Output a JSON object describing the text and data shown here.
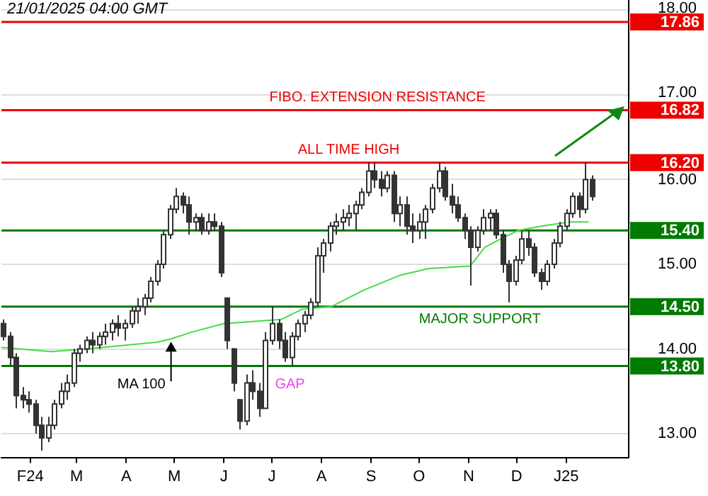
{
  "chart_data": {
    "type": "candlestick",
    "title": "21/01/2025 04:00 GMT",
    "x": [
      "2024-01-15",
      "2024-01-19",
      "2024-01-23",
      "2024-01-27",
      "2024-01-31",
      "2024-02-04",
      "2024-02-08",
      "2024-02-12",
      "2024-02-16",
      "2024-02-20",
      "2024-02-24",
      "2024-02-28",
      "2024-03-03",
      "2024-03-07",
      "2024-03-11",
      "2024-03-15",
      "2024-03-19",
      "2024-03-23",
      "2024-03-27",
      "2024-03-31",
      "2024-04-04",
      "2024-04-08",
      "2024-04-12",
      "2024-04-16",
      "2024-04-20",
      "2024-04-24",
      "2024-04-28",
      "2024-05-02",
      "2024-05-06",
      "2024-05-10",
      "2024-05-14",
      "2024-05-18",
      "2024-05-22",
      "2024-05-26",
      "2024-05-30",
      "2024-06-03",
      "2024-06-07",
      "2024-06-11",
      "2024-06-15",
      "2024-06-19",
      "2024-06-23",
      "2024-06-27",
      "2024-07-01",
      "2024-07-05",
      "2024-07-09",
      "2024-07-13",
      "2024-07-17",
      "2024-07-21",
      "2024-07-25",
      "2024-07-29",
      "2024-08-02",
      "2024-08-06",
      "2024-08-10",
      "2024-08-14",
      "2024-08-18",
      "2024-08-22",
      "2024-08-26",
      "2024-08-30",
      "2024-09-03",
      "2024-09-07",
      "2024-09-11",
      "2024-09-15",
      "2024-09-19",
      "2024-09-23",
      "2024-09-27",
      "2024-10-01",
      "2024-10-05",
      "2024-10-09",
      "2024-10-13",
      "2024-10-17",
      "2024-10-21",
      "2024-10-25",
      "2024-10-29",
      "2024-11-02",
      "2024-11-06",
      "2024-11-10",
      "2024-11-14",
      "2024-11-18",
      "2024-11-22",
      "2024-11-26",
      "2024-11-30",
      "2024-12-04",
      "2024-12-08",
      "2024-12-12",
      "2024-12-16",
      "2024-12-20",
      "2024-12-24",
      "2024-12-28",
      "2025-01-01",
      "2025-01-05",
      "2025-01-09",
      "2025-01-13",
      "2025-01-17"
    ],
    "ohlc": [
      [
        14.3,
        14.35,
        14.1,
        14.15
      ],
      [
        14.15,
        14.2,
        13.8,
        13.9
      ],
      [
        13.9,
        13.95,
        13.3,
        13.45
      ],
      [
        13.45,
        13.55,
        13.3,
        13.4
      ],
      [
        13.4,
        13.5,
        13.25,
        13.35
      ],
      [
        13.35,
        13.4,
        13.0,
        13.1
      ],
      [
        13.1,
        13.2,
        12.8,
        12.95
      ],
      [
        12.95,
        13.2,
        12.9,
        13.1
      ],
      [
        13.1,
        13.4,
        13.05,
        13.35
      ],
      [
        13.35,
        13.6,
        13.3,
        13.5
      ],
      [
        13.5,
        13.7,
        13.4,
        13.6
      ],
      [
        13.6,
        14.0,
        13.55,
        13.95
      ],
      [
        13.95,
        14.05,
        13.85,
        14.0
      ],
      [
        14.0,
        14.15,
        13.95,
        14.1
      ],
      [
        14.1,
        14.2,
        13.95,
        14.05
      ],
      [
        14.05,
        14.2,
        14.0,
        14.15
      ],
      [
        14.15,
        14.3,
        14.05,
        14.2
      ],
      [
        14.2,
        14.35,
        14.1,
        14.3
      ],
      [
        14.3,
        14.4,
        14.15,
        14.25
      ],
      [
        14.25,
        14.35,
        14.1,
        14.3
      ],
      [
        14.3,
        14.5,
        14.25,
        14.45
      ],
      [
        14.45,
        14.6,
        14.3,
        14.5
      ],
      [
        14.5,
        14.65,
        14.4,
        14.6
      ],
      [
        14.6,
        14.85,
        14.55,
        14.8
      ],
      [
        14.8,
        15.05,
        14.75,
        15.0
      ],
      [
        15.0,
        15.4,
        14.95,
        15.35
      ],
      [
        15.35,
        15.7,
        15.3,
        15.65
      ],
      [
        15.65,
        15.9,
        15.6,
        15.8
      ],
      [
        15.8,
        15.85,
        15.6,
        15.7
      ],
      [
        15.7,
        15.8,
        15.35,
        15.5
      ],
      [
        15.5,
        15.6,
        15.4,
        15.55
      ],
      [
        15.55,
        15.6,
        15.35,
        15.4
      ],
      [
        15.4,
        15.6,
        15.35,
        15.5
      ],
      [
        15.5,
        15.6,
        15.4,
        15.45
      ],
      [
        15.45,
        15.5,
        14.85,
        14.9
      ],
      [
        14.6,
        14.6,
        14.0,
        14.1
      ],
      [
        14.0,
        14.0,
        13.5,
        13.6
      ],
      [
        13.4,
        13.4,
        13.05,
        13.15
      ],
      [
        13.15,
        13.7,
        13.1,
        13.6
      ],
      [
        13.6,
        13.75,
        13.4,
        13.5
      ],
      [
        13.5,
        13.6,
        13.2,
        13.3
      ],
      [
        13.3,
        14.2,
        13.3,
        14.1
      ],
      [
        14.1,
        14.5,
        14.05,
        14.3
      ],
      [
        14.3,
        14.35,
        14.0,
        14.1
      ],
      [
        14.1,
        14.2,
        13.85,
        13.9
      ],
      [
        13.9,
        14.2,
        13.8,
        14.15
      ],
      [
        14.15,
        14.35,
        14.1,
        14.3
      ],
      [
        14.3,
        14.45,
        14.2,
        14.4
      ],
      [
        14.4,
        14.6,
        14.35,
        14.55
      ],
      [
        14.55,
        15.2,
        14.5,
        15.1
      ],
      [
        15.1,
        15.3,
        14.9,
        15.25
      ],
      [
        15.25,
        15.5,
        15.15,
        15.45
      ],
      [
        15.45,
        15.6,
        15.35,
        15.5
      ],
      [
        15.5,
        15.65,
        15.4,
        15.55
      ],
      [
        15.55,
        15.7,
        15.45,
        15.6
      ],
      [
        15.6,
        15.75,
        15.4,
        15.7
      ],
      [
        15.7,
        15.9,
        15.65,
        15.85
      ],
      [
        15.85,
        16.2,
        15.8,
        16.1
      ],
      [
        16.1,
        16.2,
        15.9,
        16.0
      ],
      [
        16.0,
        16.1,
        15.8,
        15.9
      ],
      [
        15.9,
        16.1,
        15.85,
        16.05
      ],
      [
        16.05,
        16.1,
        15.5,
        15.6
      ],
      [
        15.6,
        15.8,
        15.45,
        15.7
      ],
      [
        15.7,
        15.8,
        15.35,
        15.45
      ],
      [
        15.45,
        15.6,
        15.25,
        15.4
      ],
      [
        15.4,
        15.6,
        15.3,
        15.5
      ],
      [
        15.5,
        15.7,
        15.3,
        15.65
      ],
      [
        15.65,
        15.95,
        15.6,
        15.9
      ],
      [
        15.9,
        16.2,
        15.85,
        16.1
      ],
      [
        16.1,
        16.15,
        15.75,
        15.8
      ],
      [
        15.8,
        15.95,
        15.6,
        15.7
      ],
      [
        15.7,
        15.8,
        15.5,
        15.55
      ],
      [
        15.55,
        15.6,
        15.3,
        15.4
      ],
      [
        15.4,
        15.45,
        14.75,
        15.2
      ],
      [
        15.2,
        15.45,
        15.15,
        15.4
      ],
      [
        15.4,
        15.65,
        15.35,
        15.55
      ],
      [
        15.55,
        15.65,
        15.4,
        15.6
      ],
      [
        15.6,
        15.65,
        15.3,
        15.35
      ],
      [
        15.35,
        15.4,
        14.9,
        15.0
      ],
      [
        15.0,
        15.05,
        14.55,
        14.8
      ],
      [
        14.8,
        15.1,
        14.75,
        15.05
      ],
      [
        15.05,
        15.4,
        15.0,
        15.3
      ],
      [
        15.3,
        15.4,
        15.1,
        15.2
      ],
      [
        15.2,
        15.25,
        14.85,
        14.9
      ],
      [
        14.9,
        14.95,
        14.7,
        14.8
      ],
      [
        14.8,
        15.05,
        14.75,
        15.0
      ],
      [
        15.0,
        15.3,
        14.95,
        15.25
      ],
      [
        15.25,
        15.5,
        15.2,
        15.45
      ],
      [
        15.45,
        15.65,
        15.4,
        15.6
      ],
      [
        15.6,
        15.85,
        15.55,
        15.8
      ],
      [
        15.8,
        15.85,
        15.55,
        15.65
      ],
      [
        15.65,
        16.2,
        15.6,
        16.0
      ],
      [
        16.0,
        16.05,
        15.75,
        15.8
      ]
    ],
    "series": [
      {
        "type": "line",
        "name": "MA 100",
        "color": "#44dd44",
        "x": [
          "2024-01-14",
          "2024-02-14",
          "2024-03-07",
          "2024-04-20",
          "2024-04-29",
          "2024-05-12",
          "2024-06-01",
          "2024-07-07",
          "2024-07-20",
          "2024-08-07",
          "2024-08-28",
          "2024-09-19",
          "2024-10-07",
          "2024-11-02",
          "2024-11-11",
          "2024-11-19",
          "2024-12-02",
          "2024-12-16",
          "2025-01-03",
          "2025-01-15"
        ],
        "values": [
          14.02,
          13.97,
          14.0,
          14.08,
          14.12,
          14.2,
          14.3,
          14.35,
          14.47,
          14.5,
          14.7,
          14.87,
          14.95,
          14.98,
          15.2,
          15.28,
          15.4,
          15.45,
          15.5,
          15.5
        ]
      }
    ],
    "xlim": [
      "2024-01-14",
      "2025-02-09"
    ],
    "xticks": [
      {
        "value": "2024-02-01",
        "label": "F24"
      },
      {
        "value": "2024-03-01",
        "label": "M"
      },
      {
        "value": "2024-04-01",
        "label": "A"
      },
      {
        "value": "2024-05-01",
        "label": "M"
      },
      {
        "value": "2024-06-01",
        "label": "J"
      },
      {
        "value": "2024-07-01",
        "label": "J"
      },
      {
        "value": "2024-08-01",
        "label": "A"
      },
      {
        "value": "2024-09-01",
        "label": "S"
      },
      {
        "value": "2024-10-01",
        "label": "O"
      },
      {
        "value": "2024-11-01",
        "label": "N"
      },
      {
        "value": "2024-12-01",
        "label": "D"
      },
      {
        "value": "2025-01-01",
        "label": "J25"
      }
    ],
    "ylim": [
      12.72,
      18.12
    ],
    "yticks": [
      {
        "value": 13,
        "label": "13.00"
      },
      {
        "value": 14,
        "label": "14.00"
      },
      {
        "value": 15,
        "label": "15.00"
      },
      {
        "value": 16,
        "label": "16.00"
      },
      {
        "value": 17,
        "label": "17.00"
      },
      {
        "value": 18,
        "label": "18.00"
      }
    ],
    "grid": "y",
    "ref_lines": [
      {
        "axis": "y",
        "value": 17.86,
        "label": "17.86",
        "color": "#ee0000"
      },
      {
        "axis": "y",
        "value": 16.82,
        "label": "16.82",
        "color": "#ee0000"
      },
      {
        "axis": "y",
        "value": 16.2,
        "label": "16.20",
        "color": "#ee0000"
      },
      {
        "axis": "y",
        "value": 15.4,
        "label": "15.40",
        "color": "#007a00"
      },
      {
        "axis": "y",
        "value": 14.5,
        "label": "14.50",
        "color": "#007a00"
      },
      {
        "axis": "y",
        "value": 13.8,
        "label": "13.80",
        "color": "#007a00"
      }
    ],
    "annotations": [
      {
        "text": "FIBO. EXTENSION RESISTANCE",
        "x": "2024-09-05",
        "y": 16.82
      },
      {
        "text": "ALL TIME HIGH",
        "x": "2024-08-18",
        "y": 16.2
      },
      {
        "text": "MAJOR SUPPORT",
        "x": "2024-11-08",
        "y": 14.5
      },
      "GAP"
    ]
  }
}
